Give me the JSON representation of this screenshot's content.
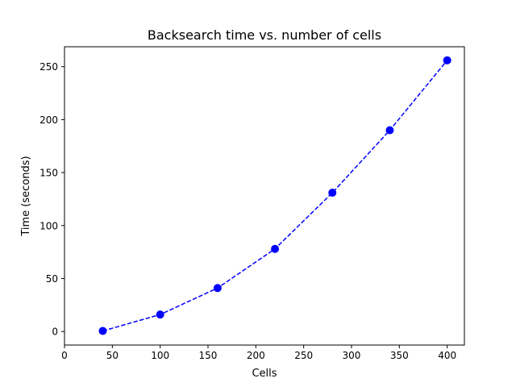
{
  "chart_data": {
    "type": "line",
    "title": "Backsearch time vs. number of cells",
    "xlabel": "Cells",
    "ylabel": "Time (seconds)",
    "xlim": [
      0,
      418
    ],
    "ylim": [
      -12.8,
      268.8
    ],
    "xticks": [
      0,
      50,
      100,
      150,
      200,
      250,
      300,
      350,
      400
    ],
    "yticks": [
      0,
      50,
      100,
      150,
      200,
      250
    ],
    "grid": false,
    "legend": "none",
    "series": [
      {
        "color": "#0000ff",
        "linestyle": "dashed",
        "marker": "circle",
        "x": [
          40,
          100,
          160,
          220,
          280,
          340,
          400
        ],
        "y": [
          0.5,
          16,
          41,
          78,
          131,
          190,
          256
        ]
      }
    ]
  }
}
